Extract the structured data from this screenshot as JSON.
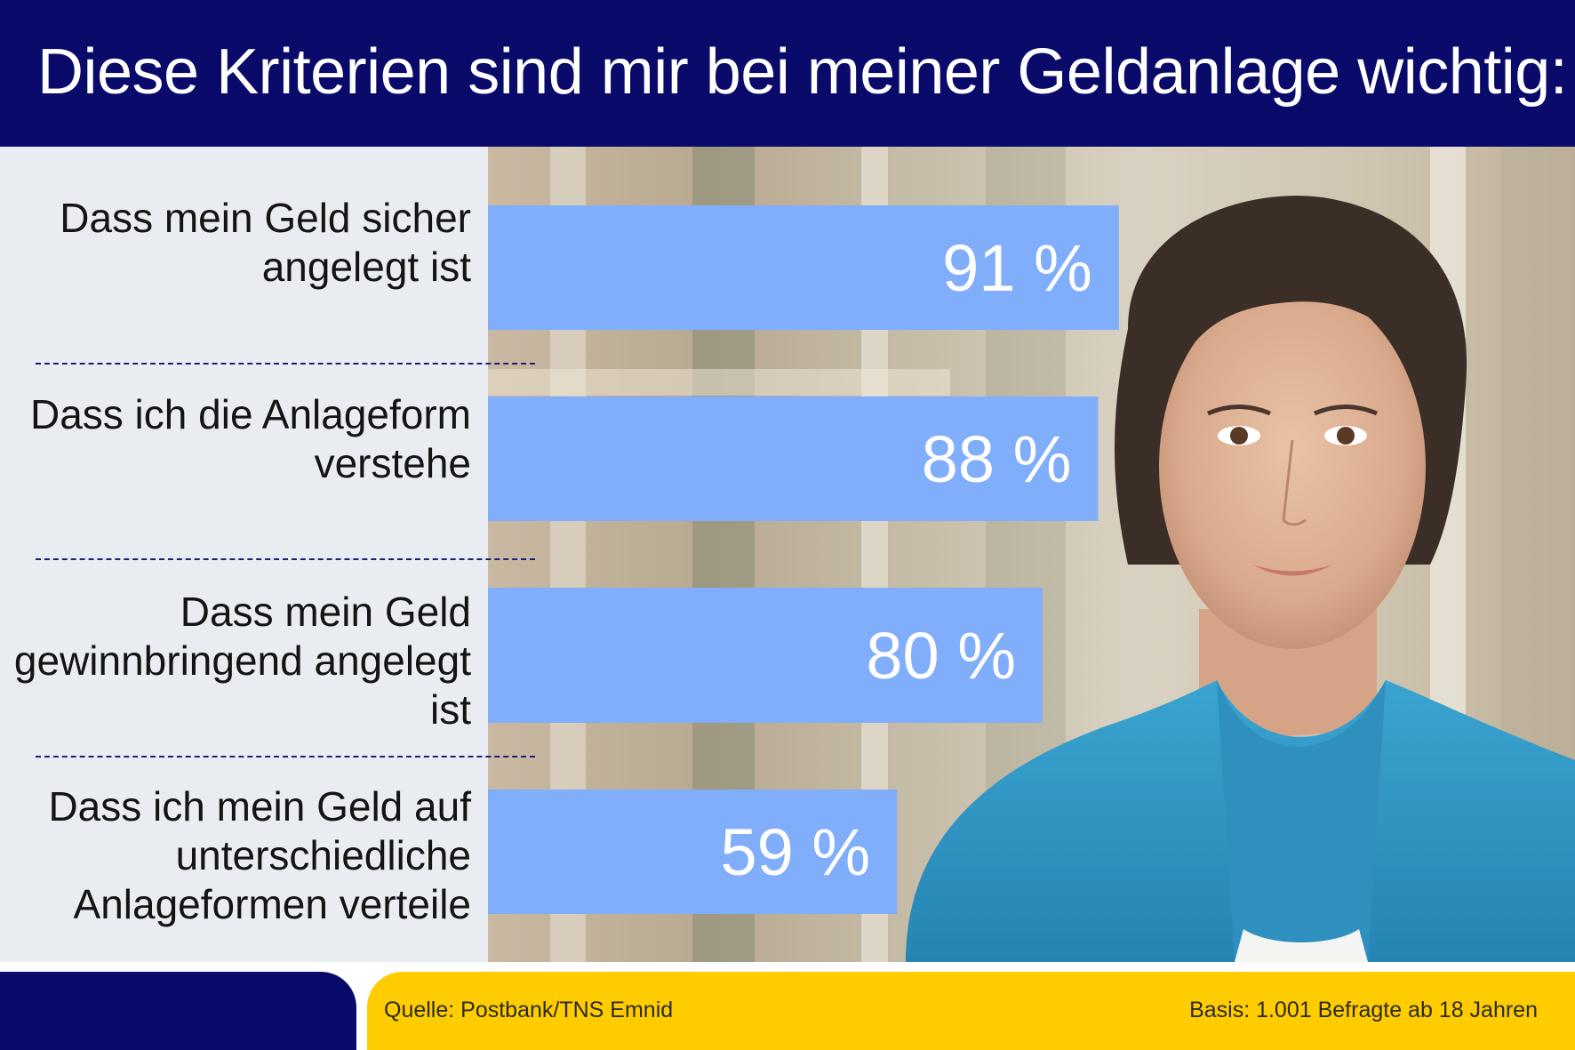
{
  "title": "Diese Kriterien sind mir bei meiner Geldanlage wichtig:",
  "chart_data": {
    "type": "bar",
    "orientation": "horizontal",
    "categories": [
      "Dass mein Geld sicher angelegt ist",
      "Dass ich die Anlageform verstehe",
      "Dass mein Geld gewinnbringend angelegt ist",
      "Dass ich mein Geld auf unterschiedliche Anlageformen verteile"
    ],
    "values": [
      91,
      88,
      80,
      59
    ],
    "value_labels": [
      "91 %",
      "88 %",
      "80 %",
      "59 %"
    ],
    "unit": "%",
    "xlim": [
      0,
      100
    ],
    "grid": false,
    "legend": "none",
    "bar_color": "#80aefa",
    "label_color": "#ffffff"
  },
  "labels": {
    "cat1": "Dass mein Geld sicher angelegt ist",
    "cat2": "Dass ich die Anlageform verstehe",
    "cat3": "Dass mein Geld gewinnbringend angelegt ist",
    "cat4": "Dass ich mein Geld auf unterschiedliche Anlageformen verteile"
  },
  "footer": {
    "source": "Quelle: Postbank/TNS Emnid",
    "basis": "Basis: 1.001 Befragte ab 18 Jahren"
  },
  "colors": {
    "header": "#0a0a6b",
    "accent_yellow": "#ffcc00",
    "panel": "#e9edf1",
    "bar": "#80aefa"
  }
}
